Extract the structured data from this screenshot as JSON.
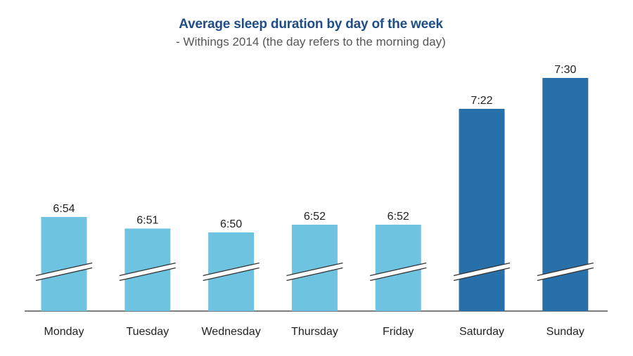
{
  "title": "Average sleep duration by day of the week",
  "subtitle": "- Withings 2014 (the day refers to the morning day)",
  "colors": {
    "title": "#1f4e86",
    "weekday_bar": "#6ec3e0",
    "weekend_bar": "#2770aa",
    "axis": "#333333",
    "text": "#222222"
  },
  "chart_data": {
    "type": "bar",
    "title": "Average sleep duration by day of the week",
    "subtitle": "- Withings 2014 (the day refers to the morning day)",
    "xlabel": "",
    "ylabel": "",
    "categories": [
      "Monday",
      "Tuesday",
      "Wednesday",
      "Thursday",
      "Friday",
      "Saturday",
      "Sunday"
    ],
    "values_minutes": [
      414,
      411,
      410,
      412,
      412,
      442,
      450
    ],
    "value_labels": [
      "6:54",
      "6:51",
      "6:50",
      "6:52",
      "6:52",
      "7:22",
      "7:30"
    ],
    "highlight": [
      false,
      false,
      false,
      false,
      false,
      true,
      true
    ],
    "axis_break": true,
    "grid": false,
    "legend": "none"
  }
}
